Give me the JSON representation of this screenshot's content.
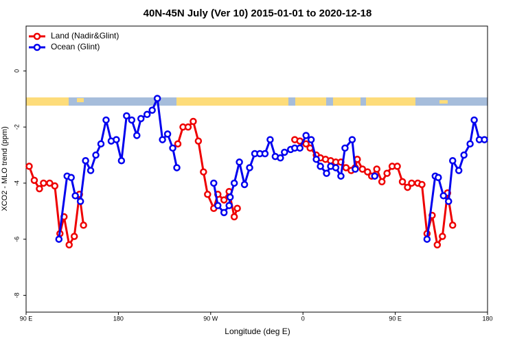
{
  "chart_data": {
    "type": "line",
    "title": "40N-45N July (Ver 10)   2015-01-01 to 2020-12-18",
    "x_label": "Longitude (deg E)",
    "y_label": "XCO2 - MLO trend (ppm)",
    "xlim": [
      90,
      540
    ],
    "xticks": [
      {
        "value": 90,
        "label": "90 E"
      },
      {
        "value": 180,
        "label": "180"
      },
      {
        "value": 270,
        "label": "90 W"
      },
      {
        "value": 360,
        "label": "0"
      },
      {
        "value": 450,
        "label": "90 E"
      },
      {
        "value": 540,
        "label": "180"
      }
    ],
    "ylim": [
      -8.6,
      1.6
    ],
    "yticks": [
      0,
      -2,
      -4,
      -6,
      -8
    ],
    "legend": "top-left",
    "series": [
      {
        "name": "Land (Nadir&Glint)",
        "color": "#ee0000",
        "x": [
          93,
          98,
          103,
          107,
          113,
          118,
          123,
          127,
          132,
          137,
          142,
          146,
          null,
          238,
          243,
          248,
          253,
          258,
          263,
          267,
          273,
          277,
          283,
          288,
          293,
          296,
          null,
          352,
          357,
          363,
          367,
          373,
          377,
          382,
          387,
          392,
          397,
          402,
          407,
          411,
          413,
          418,
          423,
          427,
          432,
          437,
          442,
          447,
          452,
          457,
          462,
          466,
          472,
          476,
          481,
          486,
          491,
          496,
          501,
          506
        ],
        "values": [
          -3.4,
          -3.9,
          -4.2,
          -4.0,
          -4.0,
          -4.1,
          -5.8,
          -5.2,
          -6.2,
          -5.9,
          -4.4,
          -5.5,
          null,
          -2.6,
          -2.0,
          -2.0,
          -1.8,
          -2.5,
          -3.6,
          -4.4,
          -4.9,
          -4.4,
          -4.6,
          -4.3,
          -5.2,
          -4.9,
          null,
          -2.45,
          -2.5,
          -2.6,
          -2.75,
          -3.0,
          -3.1,
          -3.15,
          -3.2,
          -3.25,
          -3.25,
          -3.45,
          -3.55,
          -3.45,
          -3.15,
          -3.5,
          -3.6,
          -3.75,
          -3.5,
          -3.95,
          -3.65,
          -3.4,
          -3.4,
          -3.95,
          -4.15,
          -4.0,
          -4.0,
          -4.05,
          -5.8,
          -5.15,
          -6.2,
          -5.9,
          -4.35,
          -5.5
        ]
      },
      {
        "name": "Ocean (Glint)",
        "color": "#0000ee",
        "x": [
          122,
          130,
          134,
          138,
          143,
          148,
          153,
          158,
          163,
          168,
          173,
          178,
          183,
          188,
          193,
          198,
          202,
          208,
          213,
          218,
          223,
          228,
          233,
          237,
          null,
          273,
          277,
          283,
          288,
          289,
          293,
          298,
          303,
          308,
          313,
          318,
          323,
          328,
          333,
          338,
          342,
          348,
          352,
          357,
          363,
          368,
          373,
          377,
          383,
          387,
          392,
          397,
          401,
          408,
          411,
          null,
          430,
          null,
          481,
          489,
          492,
          497,
          502,
          506,
          512,
          517,
          523,
          527,
          532,
          537
        ],
        "values": [
          -6.0,
          -3.75,
          -3.8,
          -4.45,
          -4.65,
          -3.2,
          -3.55,
          -3.0,
          -2.6,
          -1.75,
          -2.5,
          -2.45,
          -3.2,
          -1.6,
          -1.75,
          -2.3,
          -1.7,
          -1.55,
          -1.4,
          -0.98,
          -2.45,
          -2.25,
          -2.75,
          -3.45,
          null,
          -4.0,
          -4.8,
          -5.05,
          -4.8,
          -4.5,
          -4.0,
          -3.25,
          -4.05,
          -3.45,
          -2.95,
          -2.95,
          -2.95,
          -2.45,
          -3.05,
          -3.1,
          -2.9,
          -2.8,
          -2.75,
          -2.75,
          -2.3,
          -2.45,
          -3.15,
          -3.4,
          -3.65,
          -3.4,
          -3.45,
          -3.75,
          -2.75,
          -2.45,
          -3.5,
          null,
          -3.75,
          null,
          -6.0,
          -3.75,
          -3.8,
          -4.45,
          -4.65,
          -3.2,
          -3.55,
          -3.0,
          -2.6,
          -1.75,
          -2.45,
          -2.45
        ]
      }
    ]
  }
}
